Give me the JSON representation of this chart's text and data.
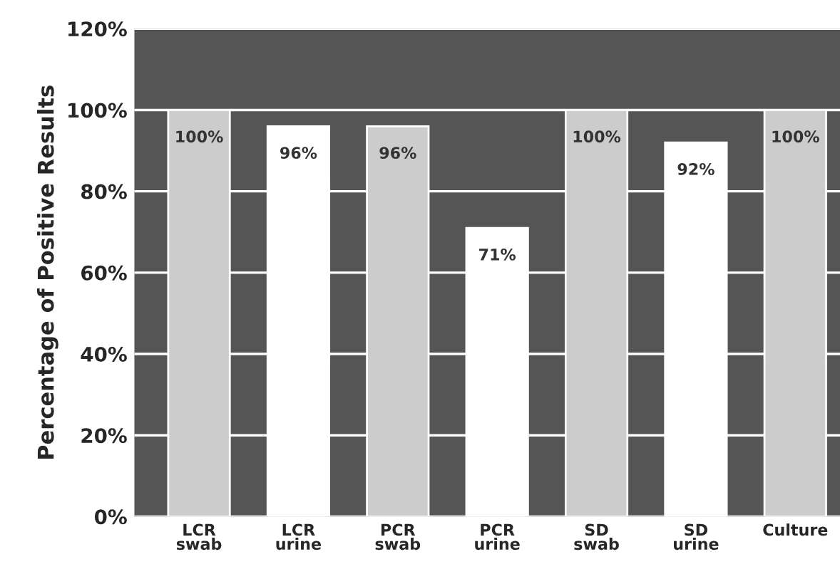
{
  "chart_data": {
    "type": "bar",
    "ylabel": "Percentage of Positive Results",
    "categories": [
      "LCR\nswab",
      "LCR\nurine",
      "PCR\nswab",
      "PCR\nurine",
      "SD\nswab",
      "SD\nurine",
      "Culture"
    ],
    "values": [
      100,
      96,
      96,
      71,
      100,
      92,
      100
    ],
    "colors": [
      "#cccccc",
      "#ffffff",
      "#cccccc",
      "#ffffff",
      "#cccccc",
      "#ffffff",
      "#cccccc"
    ],
    "ylim": [
      0,
      120
    ],
    "yticks": [
      {
        "value": 0,
        "label": "0%"
      },
      {
        "value": 20,
        "label": "20%"
      },
      {
        "value": 40,
        "label": "40%"
      },
      {
        "value": 60,
        "label": "60%"
      },
      {
        "value": 80,
        "label": "80%"
      },
      {
        "value": 100,
        "label": "100%"
      },
      {
        "value": 120,
        "label": "120%"
      }
    ],
    "grid": "y",
    "data_labels": true,
    "value_labels": [
      "100%",
      "96%",
      "96%",
      "71%",
      "100%",
      "92%",
      "100%"
    ]
  }
}
